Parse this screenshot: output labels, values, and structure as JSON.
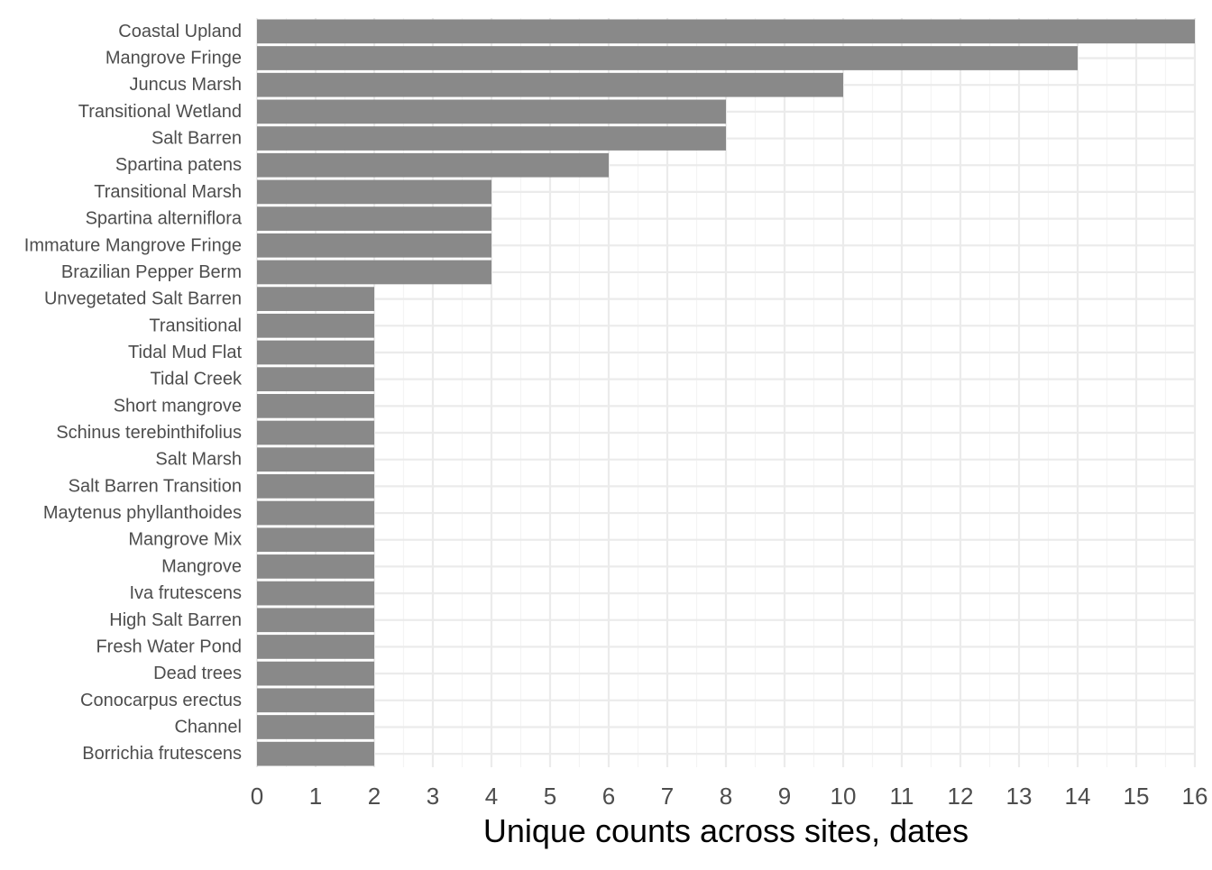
{
  "chart_data": {
    "type": "bar",
    "orientation": "horizontal",
    "title": "",
    "xlabel": "Unique counts across sites, dates",
    "ylabel": "",
    "xlim": [
      0,
      16
    ],
    "x_ticks": [
      "0",
      "1",
      "2",
      "3",
      "4",
      "5",
      "6",
      "7",
      "8",
      "9",
      "10",
      "11",
      "12",
      "13",
      "14",
      "15",
      "16"
    ],
    "grid": true,
    "legend": "none",
    "bar_color": "#898989",
    "categories": [
      "Coastal Upland",
      "Mangrove Fringe",
      "Juncus Marsh",
      "Transitional Wetland",
      "Salt Barren",
      "Spartina patens",
      "Transitional Marsh",
      "Spartina alterniflora",
      "Immature Mangrove Fringe",
      "Brazilian Pepper Berm",
      "Unvegetated Salt Barren",
      "Transitional",
      "Tidal Mud Flat",
      "Tidal Creek",
      "Short mangrove",
      "Schinus terebinthifolius",
      "Salt Marsh",
      "Salt Barren Transition",
      "Maytenus phyllanthoides",
      "Mangrove Mix",
      "Mangrove",
      "Iva frutescens",
      "High Salt Barren",
      "Fresh Water Pond",
      "Dead trees",
      "Conocarpus erectus",
      "Channel",
      "Borrichia frutescens"
    ],
    "values": [
      16,
      14,
      10,
      8,
      8,
      6,
      4,
      4,
      4,
      4,
      2,
      2,
      2,
      2,
      2,
      2,
      2,
      2,
      2,
      2,
      2,
      2,
      2,
      2,
      2,
      2,
      2,
      2
    ]
  }
}
